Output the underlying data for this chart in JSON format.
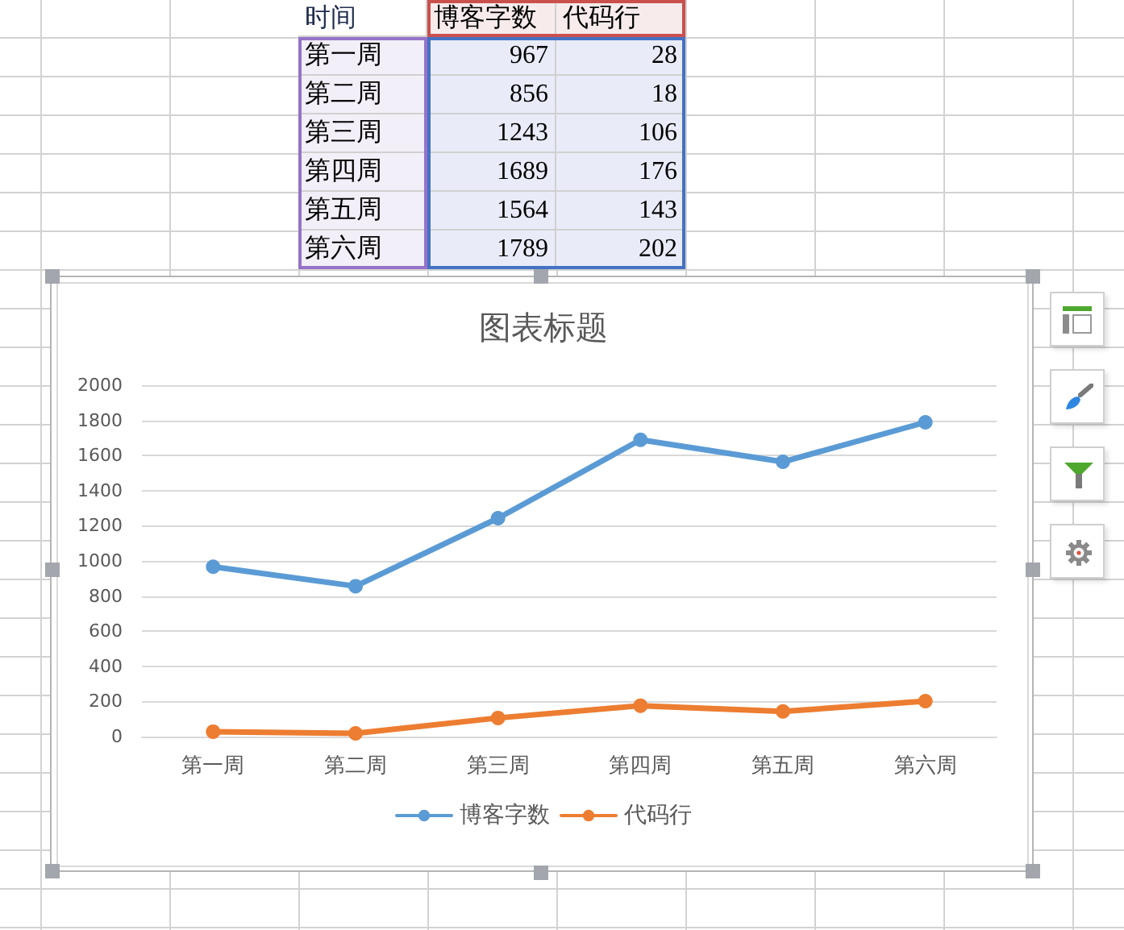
{
  "chart_data": [
    {
      "type": "other",
      "xlabel": "时间",
      "categories": [
        "第一周",
        "第二周",
        "第三周",
        "第四周",
        "第五周",
        "第六周"
      ],
      "series": [
        {
          "name": "博客字数",
          "values": [
            967,
            856,
            1243,
            1689,
            1564,
            1789
          ]
        },
        {
          "name": "代码行",
          "values": [
            28,
            18,
            106,
            176,
            143,
            202
          ]
        }
      ],
      "data_labels": true
    },
    {
      "type": "line",
      "title": "图表标题",
      "categories": [
        "第一周",
        "第二周",
        "第三周",
        "第四周",
        "第五周",
        "第六周"
      ],
      "series": [
        {
          "name": "博客字数",
          "color": "#5b9bd5",
          "values": [
            967,
            856,
            1243,
            1689,
            1564,
            1789
          ]
        },
        {
          "name": "代码行",
          "color": "#ed7d31",
          "values": [
            28,
            18,
            106,
            176,
            143,
            202
          ]
        }
      ],
      "ylim": [
        0,
        2000
      ],
      "yticks": [
        0,
        200,
        400,
        600,
        800,
        1000,
        1200,
        1400,
        1600,
        1800,
        2000
      ],
      "grid": "y",
      "legend": "bottom",
      "marker": "circle",
      "line_style": "solid"
    }
  ]
}
